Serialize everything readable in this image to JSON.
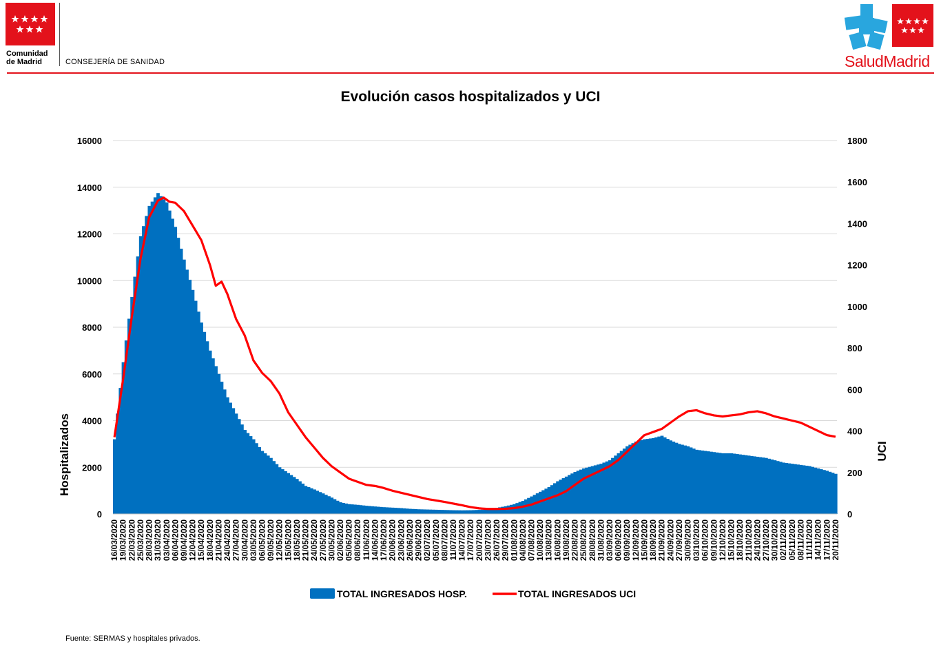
{
  "header": {
    "org_line1": "Comunidad",
    "org_line2": "de Madrid",
    "department": "CONSEJERÍA DE SANIDAD",
    "brand_part1": "Salud",
    "brand_part2": "Madrid"
  },
  "colors": {
    "brand_red": "#e3121b",
    "hosp_fill": "#0070c0",
    "uci_line": "#ff0000"
  },
  "chart_data": {
    "type": "area-line",
    "title": "Evolución casos hospitalizados y UCI",
    "ylabel_left": "Hospitalizados",
    "ylabel_right": "UCI",
    "ylim_left": [
      0,
      16000
    ],
    "ylim_right": [
      0,
      1800
    ],
    "yticks_left": [
      0,
      2000,
      4000,
      6000,
      8000,
      10000,
      12000,
      14000,
      16000
    ],
    "yticks_right": [
      0,
      200,
      400,
      600,
      800,
      1000,
      1200,
      1400,
      1600,
      1800
    ],
    "grid": true,
    "legend_position": "bottom",
    "x_start": "16/03/2020",
    "x_end": "20/11/2020",
    "x_tick_labels": [
      "16/03/2020",
      "19/03/2020",
      "22/03/2020",
      "25/03/2020",
      "28/03/2020",
      "31/03/2020",
      "03/04/2020",
      "06/04/2020",
      "09/04/2020",
      "12/04/2020",
      "15/04/2020",
      "18/04/2020",
      "21/04/2020",
      "24/04/2020",
      "27/04/2020",
      "30/04/2020",
      "03/05/2020",
      "06/05/2020",
      "09/05/2020",
      "12/05/2020",
      "15/05/2020",
      "18/05/2020",
      "21/05/2020",
      "24/05/2020",
      "27/05/2020",
      "30/05/2020",
      "02/06/2020",
      "05/06/2020",
      "08/06/2020",
      "11/06/2020",
      "14/06/2020",
      "17/06/2020",
      "20/06/2020",
      "23/06/2020",
      "26/06/2020",
      "29/06/2020",
      "02/07/2020",
      "05/07/2020",
      "08/07/2020",
      "11/07/2020",
      "14/07/2020",
      "17/07/2020",
      "20/07/2020",
      "23/07/2020",
      "26/07/2020",
      "29/07/2020",
      "01/08/2020",
      "04/08/2020",
      "07/08/2020",
      "10/08/2020",
      "13/08/2020",
      "16/08/2020",
      "19/08/2020",
      "22/08/2020",
      "25/08/2020",
      "28/08/2020",
      "31/08/2020",
      "03/09/2020",
      "06/09/2020",
      "09/09/2020",
      "12/09/2020",
      "15/09/2020",
      "18/09/2020",
      "21/09/2020",
      "24/09/2020",
      "27/09/2020",
      "30/09/2020",
      "03/10/2020",
      "06/10/2020",
      "09/10/2020",
      "12/10/2020",
      "15/10/2020",
      "18/10/2020",
      "21/10/2020",
      "24/10/2020",
      "27/10/2020",
      "30/10/2020",
      "02/11/2020",
      "05/11/2020",
      "08/11/2020",
      "11/11/2020",
      "14/11/2020",
      "17/11/2020",
      "20/11/2020"
    ],
    "series": [
      {
        "name": "TOTAL INGRESADOS HOSP.",
        "axis": "left",
        "style": "area",
        "anchors_day_value": [
          [
            0,
            3200
          ],
          [
            3,
            6500
          ],
          [
            6,
            9300
          ],
          [
            9,
            11900
          ],
          [
            12,
            13200
          ],
          [
            15,
            13750
          ],
          [
            18,
            13350
          ],
          [
            21,
            12300
          ],
          [
            24,
            10900
          ],
          [
            27,
            9600
          ],
          [
            30,
            8200
          ],
          [
            33,
            7000
          ],
          [
            36,
            6000
          ],
          [
            39,
            5000
          ],
          [
            42,
            4300
          ],
          [
            45,
            3600
          ],
          [
            48,
            3200
          ],
          [
            51,
            2700
          ],
          [
            54,
            2400
          ],
          [
            57,
            2000
          ],
          [
            60,
            1750
          ],
          [
            63,
            1500
          ],
          [
            66,
            1200
          ],
          [
            69,
            1050
          ],
          [
            72,
            880
          ],
          [
            75,
            700
          ],
          [
            78,
            500
          ],
          [
            81,
            420
          ],
          [
            84,
            390
          ],
          [
            87,
            350
          ],
          [
            90,
            320
          ],
          [
            93,
            290
          ],
          [
            96,
            270
          ],
          [
            99,
            250
          ],
          [
            102,
            220
          ],
          [
            105,
            200
          ],
          [
            108,
            190
          ],
          [
            111,
            180
          ],
          [
            114,
            170
          ],
          [
            117,
            160
          ],
          [
            120,
            155
          ],
          [
            123,
            160
          ],
          [
            126,
            175
          ],
          [
            129,
            200
          ],
          [
            132,
            260
          ],
          [
            135,
            330
          ],
          [
            138,
            420
          ],
          [
            141,
            560
          ],
          [
            144,
            750
          ],
          [
            147,
            950
          ],
          [
            150,
            1150
          ],
          [
            153,
            1400
          ],
          [
            156,
            1600
          ],
          [
            159,
            1800
          ],
          [
            162,
            1950
          ],
          [
            165,
            2050
          ],
          [
            168,
            2150
          ],
          [
            171,
            2300
          ],
          [
            174,
            2600
          ],
          [
            177,
            2900
          ],
          [
            180,
            3100
          ],
          [
            183,
            3200
          ],
          [
            186,
            3250
          ],
          [
            189,
            3350
          ],
          [
            192,
            3150
          ],
          [
            195,
            3000
          ],
          [
            198,
            2900
          ],
          [
            201,
            2750
          ],
          [
            204,
            2700
          ],
          [
            207,
            2650
          ],
          [
            210,
            2600
          ],
          [
            213,
            2600
          ],
          [
            216,
            2550
          ],
          [
            219,
            2500
          ],
          [
            222,
            2450
          ],
          [
            225,
            2400
          ],
          [
            228,
            2300
          ],
          [
            231,
            2200
          ],
          [
            234,
            2150
          ],
          [
            237,
            2100
          ],
          [
            240,
            2050
          ],
          [
            243,
            1950
          ],
          [
            246,
            1850
          ],
          [
            249,
            1720
          ]
        ]
      },
      {
        "name": "TOTAL INGRESADOS UCI",
        "axis": "right",
        "style": "line",
        "anchors_day_value": [
          [
            0,
            370
          ],
          [
            3,
            650
          ],
          [
            6,
            950
          ],
          [
            9,
            1230
          ],
          [
            12,
            1430
          ],
          [
            15,
            1510
          ],
          [
            17,
            1525
          ],
          [
            19,
            1505
          ],
          [
            21,
            1500
          ],
          [
            24,
            1460
          ],
          [
            27,
            1390
          ],
          [
            30,
            1320
          ],
          [
            33,
            1200
          ],
          [
            35,
            1100
          ],
          [
            37,
            1120
          ],
          [
            39,
            1060
          ],
          [
            42,
            940
          ],
          [
            45,
            860
          ],
          [
            48,
            740
          ],
          [
            51,
            680
          ],
          [
            54,
            640
          ],
          [
            57,
            580
          ],
          [
            60,
            490
          ],
          [
            63,
            430
          ],
          [
            66,
            370
          ],
          [
            69,
            320
          ],
          [
            72,
            270
          ],
          [
            75,
            230
          ],
          [
            78,
            200
          ],
          [
            81,
            170
          ],
          [
            84,
            155
          ],
          [
            87,
            140
          ],
          [
            90,
            135
          ],
          [
            93,
            125
          ],
          [
            96,
            112
          ],
          [
            99,
            102
          ],
          [
            102,
            92
          ],
          [
            105,
            82
          ],
          [
            108,
            72
          ],
          [
            111,
            65
          ],
          [
            114,
            58
          ],
          [
            117,
            50
          ],
          [
            120,
            42
          ],
          [
            123,
            33
          ],
          [
            126,
            27
          ],
          [
            129,
            24
          ],
          [
            132,
            24
          ],
          [
            135,
            25
          ],
          [
            138,
            28
          ],
          [
            141,
            35
          ],
          [
            144,
            45
          ],
          [
            147,
            60
          ],
          [
            150,
            75
          ],
          [
            153,
            90
          ],
          [
            156,
            110
          ],
          [
            159,
            140
          ],
          [
            162,
            170
          ],
          [
            165,
            190
          ],
          [
            168,
            210
          ],
          [
            171,
            230
          ],
          [
            174,
            260
          ],
          [
            177,
            300
          ],
          [
            180,
            340
          ],
          [
            183,
            380
          ],
          [
            186,
            395
          ],
          [
            189,
            410
          ],
          [
            192,
            440
          ],
          [
            195,
            470
          ],
          [
            198,
            495
          ],
          [
            201,
            500
          ],
          [
            204,
            485
          ],
          [
            207,
            475
          ],
          [
            210,
            470
          ],
          [
            213,
            475
          ],
          [
            216,
            480
          ],
          [
            219,
            490
          ],
          [
            222,
            495
          ],
          [
            225,
            485
          ],
          [
            228,
            470
          ],
          [
            231,
            460
          ],
          [
            234,
            450
          ],
          [
            237,
            440
          ],
          [
            240,
            420
          ],
          [
            243,
            400
          ],
          [
            246,
            380
          ],
          [
            249,
            372
          ]
        ]
      }
    ]
  },
  "footer": {
    "source": "Fuente: SERMAS y hospitales privados."
  }
}
